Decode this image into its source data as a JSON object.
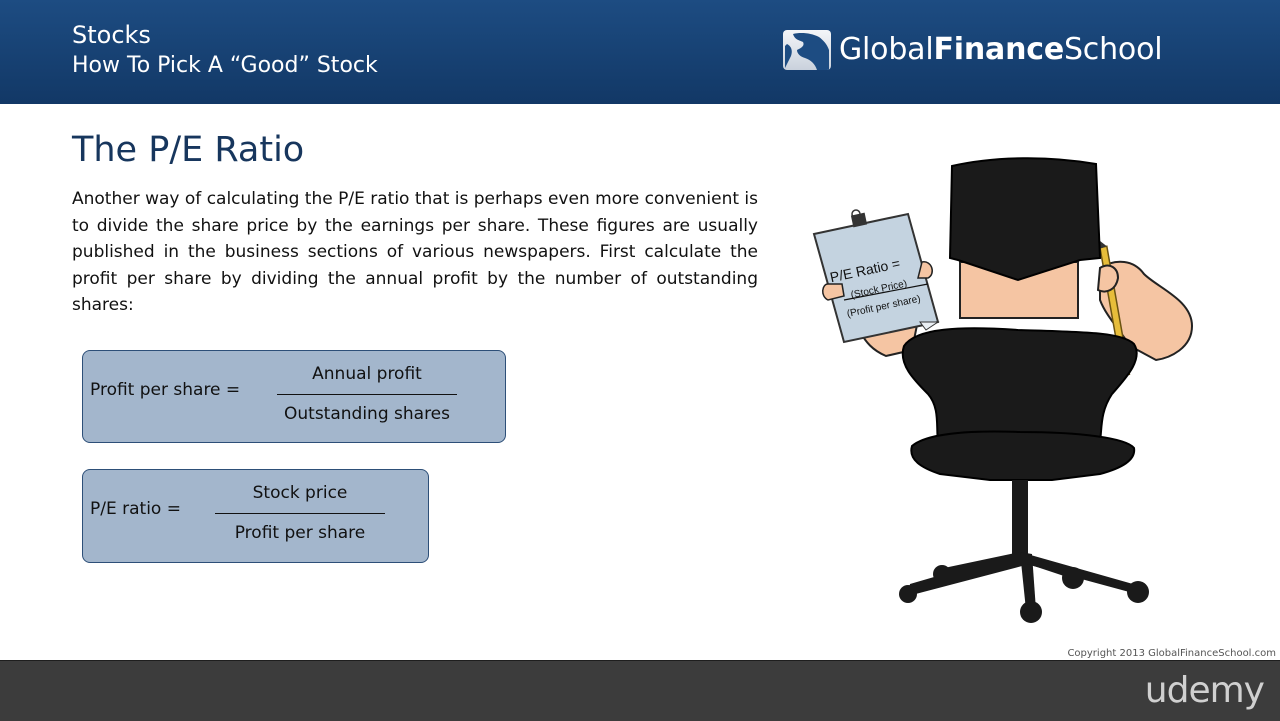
{
  "header": {
    "course": "Stocks",
    "lesson": "How To Pick A “Good” Stock",
    "brand": {
      "part1": "Global",
      "part2": "Finance",
      "part3": "School"
    }
  },
  "slide": {
    "title": "The P/E Ratio",
    "body": "Another way of calculating the P/E ratio that is perhaps even more convenient is to divide the share price by the earnings per share. These figures are usually published in the business sections of various newspapers. First calculate the profit per share by dividing the annual profit by the number of outstanding shares:"
  },
  "formulas": [
    {
      "lhs": "Profit per share =",
      "numerator": "Annual profit",
      "denominator": "Outstanding shares"
    },
    {
      "lhs": "P/E ratio =",
      "numerator": "Stock price",
      "denominator": "Profit per share"
    }
  ],
  "clipboard": {
    "title": "P/E Ratio =",
    "numerator": "(Stock Price)",
    "denominator": "(Profit per share)"
  },
  "footer": {
    "copyright": "Copyright 2013 GlobalFinanceSchool.com",
    "platform": "udemy"
  },
  "colors": {
    "header": "#1a4479",
    "title": "#17365d",
    "formula_box": "#a3b6cc",
    "footer": "#3c3c3c"
  }
}
